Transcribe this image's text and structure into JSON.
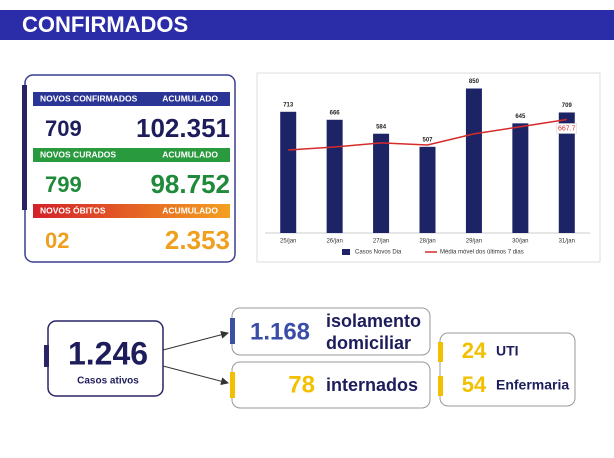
{
  "header": {
    "title": "CONFIRMADOS"
  },
  "summary": {
    "confirmed": {
      "label": "NOVOS CONFIRMADOS",
      "acc_label": "ACUMULADO",
      "new": "709",
      "total": "102.351"
    },
    "cured": {
      "label": "NOVOS CURADOS",
      "acc_label": "ACUMULADO",
      "new": "799",
      "total": "98.752"
    },
    "deaths": {
      "label": "NOVOS ÓBITOS",
      "acc_label": "ACUMULADO",
      "new": "02",
      "total": "2.353"
    }
  },
  "active": {
    "value": "1.246",
    "label": "Casos ativos"
  },
  "isolation": {
    "value": "1.168",
    "label_1": "isolamento",
    "label_2": "domiciliar"
  },
  "hospitalized": {
    "value": "78",
    "label": "internados",
    "breakdown": [
      {
        "value": "24",
        "label": "UTI"
      },
      {
        "value": "54",
        "label": "Enfermaria"
      }
    ]
  },
  "chart_data": {
    "type": "bar",
    "categories": [
      "25/jan",
      "26/jan",
      "27/jan",
      "28/jan",
      "29/jan",
      "30/jan",
      "31/jan"
    ],
    "ylim": [
      0,
      900
    ],
    "series": [
      {
        "name": "Casos Novos Dia",
        "color": "#1c2466",
        "values": [
          713,
          666,
          584,
          507,
          850,
          645,
          709
        ]
      },
      {
        "name": "Média móvel dos últimos 7 dias",
        "type": "line",
        "color": "#d62b2b",
        "values": [
          488,
          506,
          530,
          518,
          583,
          625,
          667.7
        ],
        "value_labels": [
          null,
          null,
          null,
          null,
          null,
          null,
          "667.7"
        ]
      }
    ]
  }
}
